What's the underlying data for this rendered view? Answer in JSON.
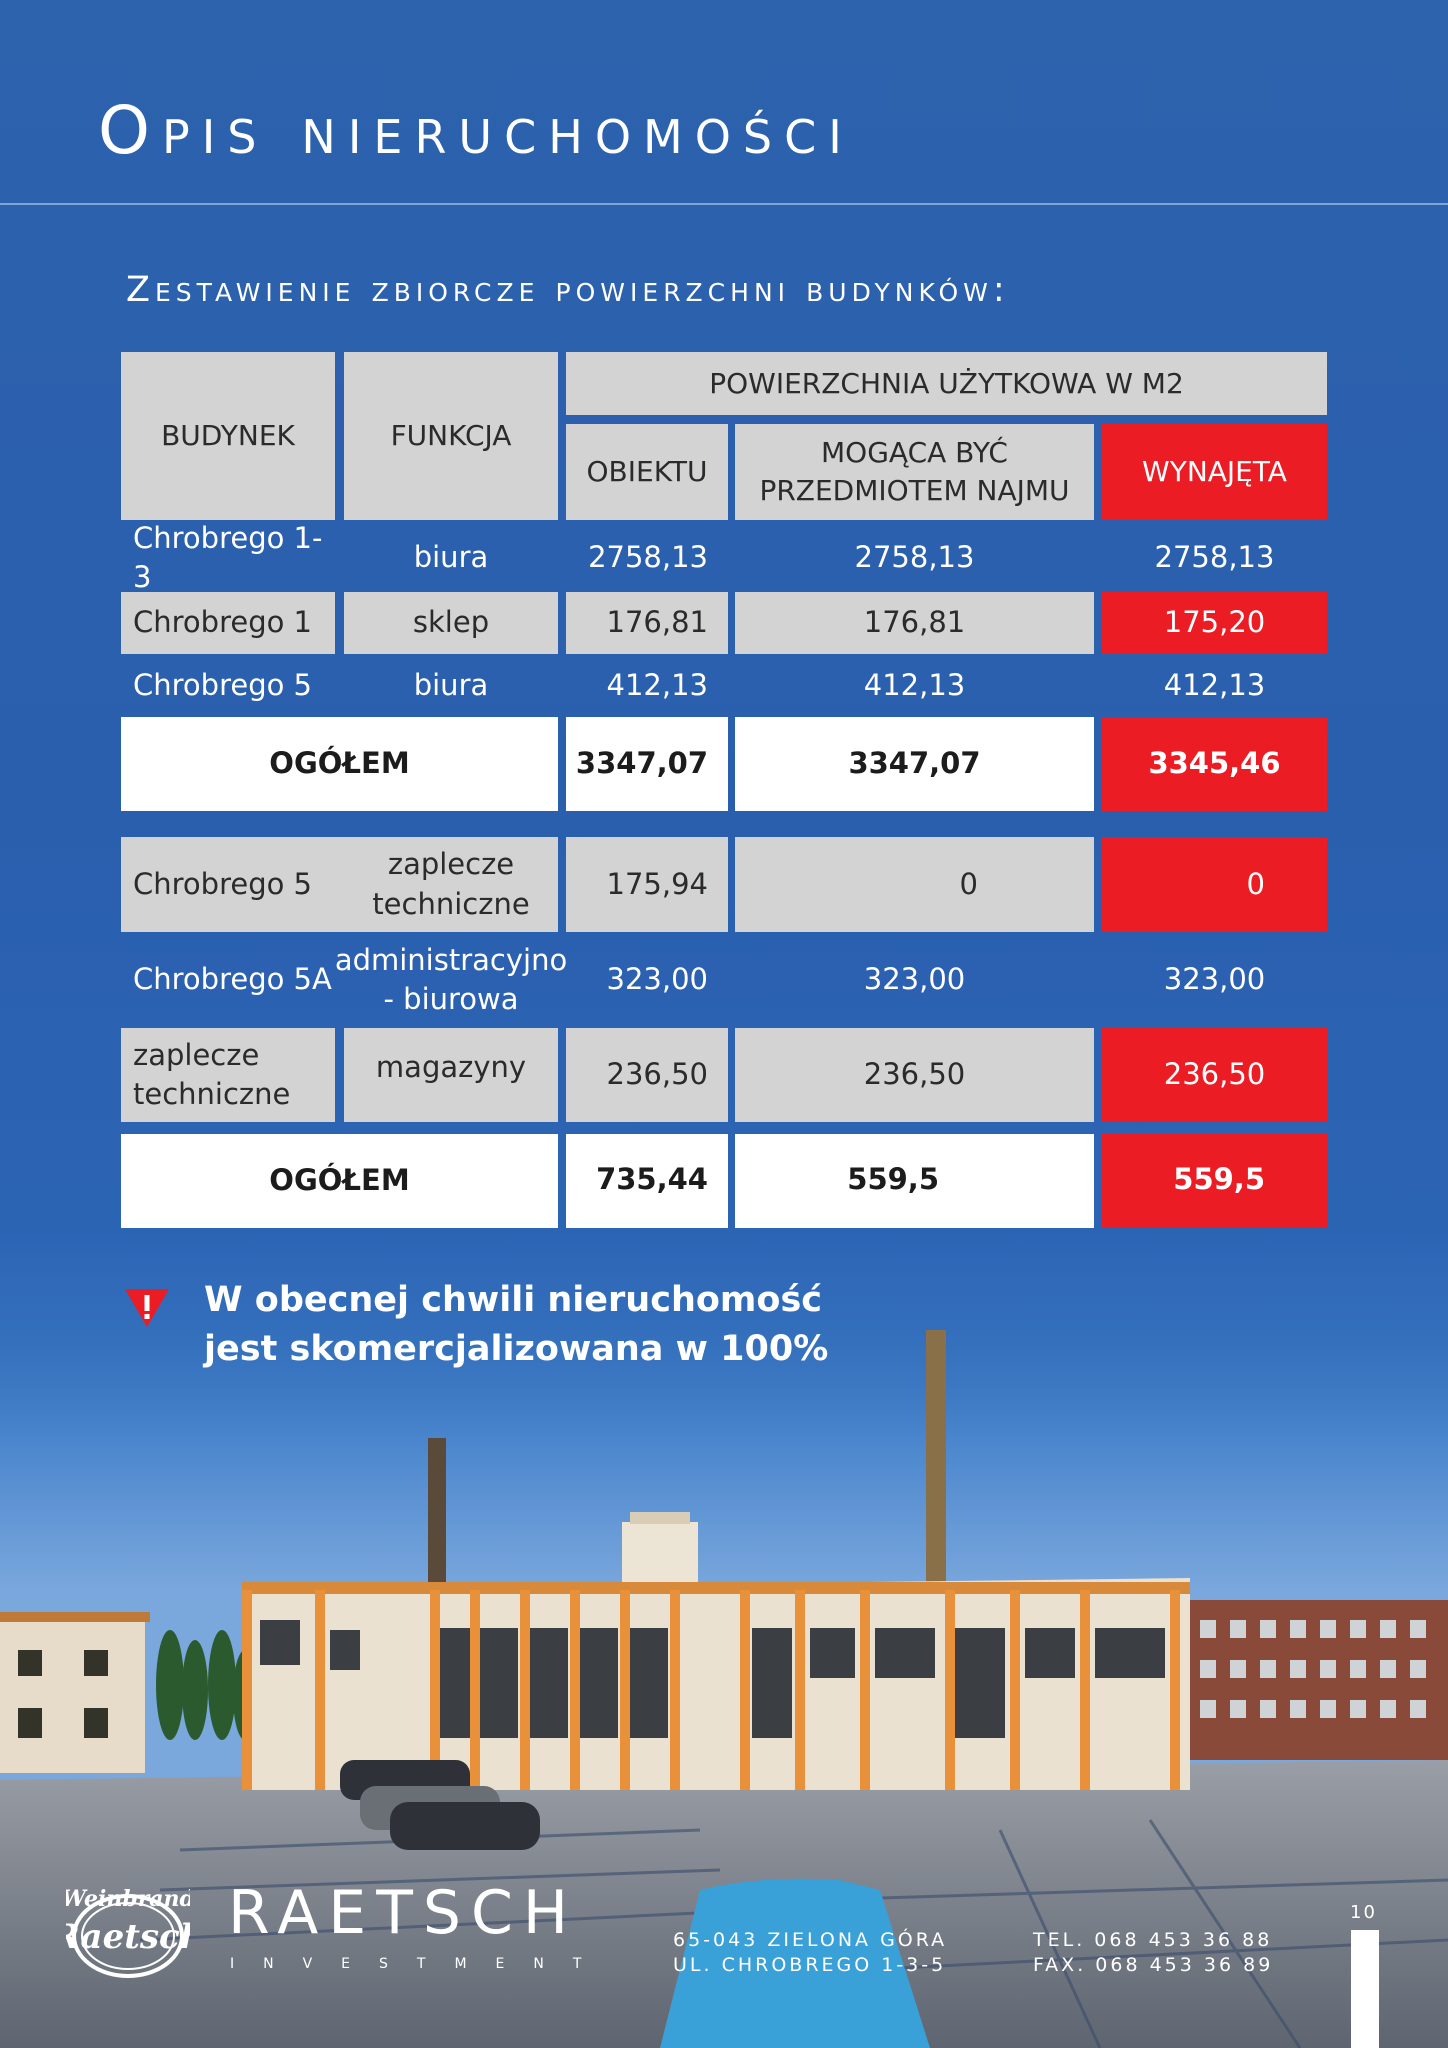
{
  "page": {
    "title": "Opis nieruchomości",
    "subtitle": "Zestawienie zbiorcze powierzchni budynków:"
  },
  "table": {
    "headers": {
      "building": "BUDYNEK",
      "function": "FUNKCJA",
      "area_group": "POWIERZCHNIA UŻYTKOWA W M2",
      "object": "OBIEKTU",
      "rentable": "MOGĄCA BYĆ PRZEDMIOTEM NAJMU",
      "rented": "WYNAJĘTA"
    },
    "rows": [
      {
        "building": "Chrobrego 1-3",
        "function": "biura",
        "object": "2758,13",
        "rentable": "2758,13",
        "rented": "2758,13"
      },
      {
        "building": "Chrobrego 1",
        "function": "sklep",
        "object": "176,81",
        "rentable": "176,81",
        "rented": "175,20"
      },
      {
        "building": "Chrobrego 5",
        "function": "biura",
        "object": "412,13",
        "rentable": "412,13",
        "rented": "412,13"
      },
      {
        "total_label": "OGÓŁEM",
        "object": "3347,07",
        "rentable": "3347,07",
        "rented": "3345,46"
      },
      {
        "building": "Chrobrego 5",
        "function": "zaplecze techniczne",
        "object": "175,94",
        "rentable": "0",
        "rented": "0"
      },
      {
        "building": "Chrobrego 5A",
        "function": "administracyjno - biurowa",
        "object": "323,00",
        "rentable": "323,00",
        "rented": "323,00"
      },
      {
        "building": "zaplecze techniczne",
        "function": "magazyny",
        "object": "236,50",
        "rentable": "236,50",
        "rented": "236,50"
      },
      {
        "total_label": "OGÓŁEM",
        "object": "735,44",
        "rentable": "559,5",
        "rented": "559,5"
      }
    ]
  },
  "notice": {
    "line1": "W obecnej chwili nieruchomość",
    "line2": "jest skomercjalizowana w 100%",
    "icon": "warning-triangle-icon"
  },
  "footer": {
    "logo_text_1": "Weinbrand",
    "logo_text_2": "Raetsch",
    "brand_name": "RAETSCH",
    "brand_sub": "INVESTMENT",
    "address_line1": "65-043 ZIELONA GÓRA",
    "address_line2": "UL. CHROBREGO 1-3-5",
    "tel": "TEL. 068 453 36 88",
    "fax": "FAX. 068 453 36 89",
    "page_number": "10"
  },
  "colors": {
    "background": "#2d62ad",
    "accent_red": "#ec1c24",
    "cell_gray": "#d3d3d3"
  }
}
